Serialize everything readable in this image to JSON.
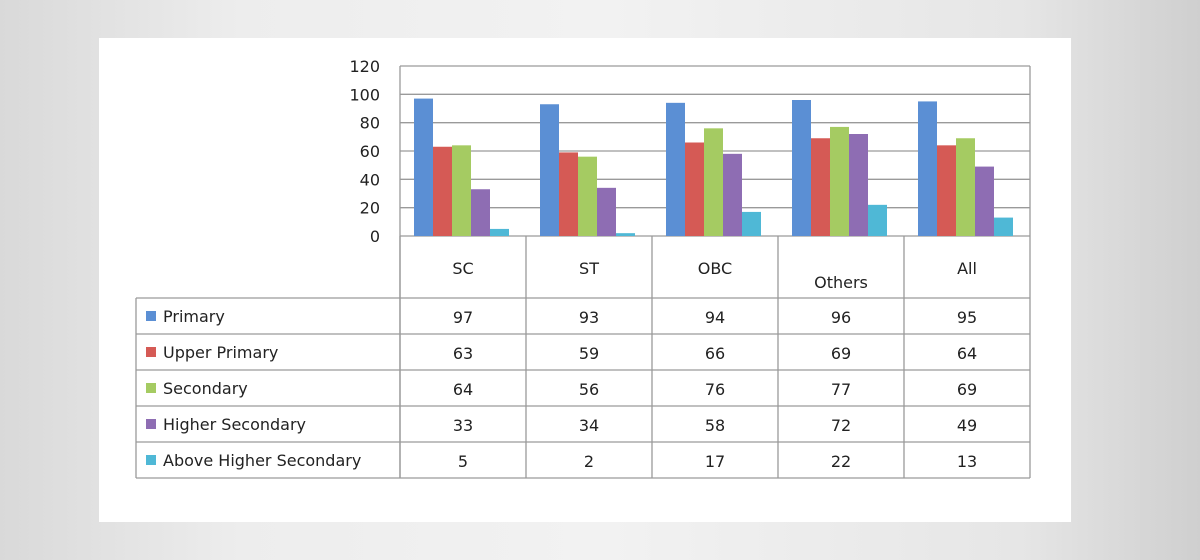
{
  "chart_data": {
    "type": "bar",
    "categories": [
      "SC",
      "ST",
      "OBC",
      "Others",
      "All"
    ],
    "series": [
      {
        "name": "Primary",
        "color": "#5b8fd4",
        "values": [
          97,
          93,
          94,
          96,
          95
        ]
      },
      {
        "name": "Upper Primary",
        "color": "#d55a55",
        "values": [
          63,
          59,
          66,
          69,
          64
        ]
      },
      {
        "name": "Secondary",
        "color": "#a5cb62",
        "values": [
          64,
          56,
          76,
          77,
          69
        ]
      },
      {
        "name": "Higher Secondary",
        "color": "#8e6db3",
        "values": [
          33,
          34,
          58,
          72,
          49
        ]
      },
      {
        "name": "Above Higher Secondary",
        "color": "#4fb8d6",
        "values": [
          5,
          2,
          17,
          22,
          13
        ]
      }
    ],
    "yticks": [
      0,
      20,
      40,
      60,
      80,
      100,
      120
    ],
    "ylim": [
      0,
      120
    ],
    "grid": true,
    "legend": "data-table",
    "title": "",
    "xlabel": "",
    "ylabel": ""
  }
}
